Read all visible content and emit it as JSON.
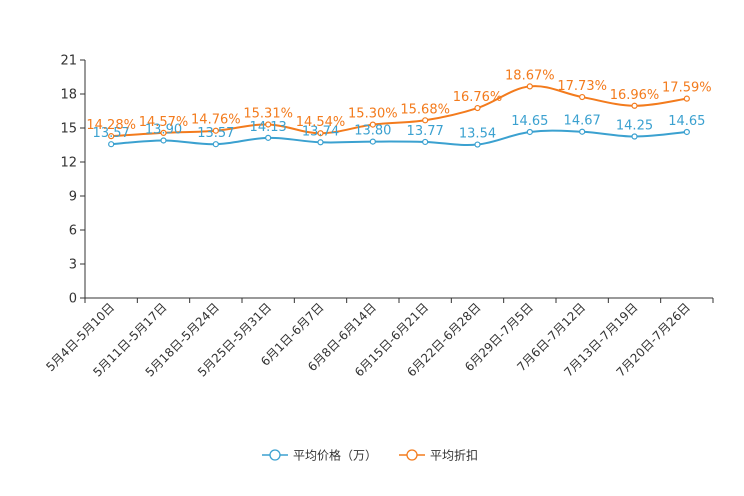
{
  "chart_data": {
    "type": "line",
    "title": "",
    "xlabel": "",
    "ylabel": "",
    "ylim": [
      0,
      21
    ],
    "yticks": [
      0,
      3,
      6,
      9,
      12,
      15,
      18,
      21
    ],
    "categories": [
      "5月4日-5月10日",
      "5月11日-5月17日",
      "5月18日-5月24日",
      "5月25日-5月31日",
      "6月1日-6月7日",
      "6月8日-6月14日",
      "6月15日-6月21日",
      "6月22日-6月28日",
      "6月29日-7月5日",
      "7月6日-7月12日",
      "7月13日-7月19日",
      "7月20日-7月26日"
    ],
    "series": [
      {
        "name": "平均价格（万）",
        "color": "#3ba1d0",
        "values": [
          13.57,
          13.9,
          13.57,
          14.13,
          13.74,
          13.8,
          13.77,
          13.54,
          14.65,
          14.67,
          14.25,
          14.65
        ],
        "labels": [
          "13.57",
          "13.90",
          "13.57",
          "14.13",
          "13.74",
          "13.80",
          "13.77",
          "13.54",
          "14.65",
          "14.67",
          "14.25",
          "14.65"
        ]
      },
      {
        "name": "平均折扣",
        "color": "#f37b1d",
        "values": [
          14.28,
          14.57,
          14.76,
          15.31,
          14.54,
          15.3,
          15.68,
          16.76,
          18.67,
          17.73,
          16.96,
          17.59
        ],
        "labels": [
          "14.28%",
          "14.57%",
          "14.76%",
          "15.31%",
          "14.54%",
          "15.30%",
          "15.68%",
          "16.76%",
          "18.67%",
          "17.73%",
          "16.96%",
          "17.59%"
        ]
      }
    ],
    "legend": "bottom-center",
    "grid": false
  }
}
